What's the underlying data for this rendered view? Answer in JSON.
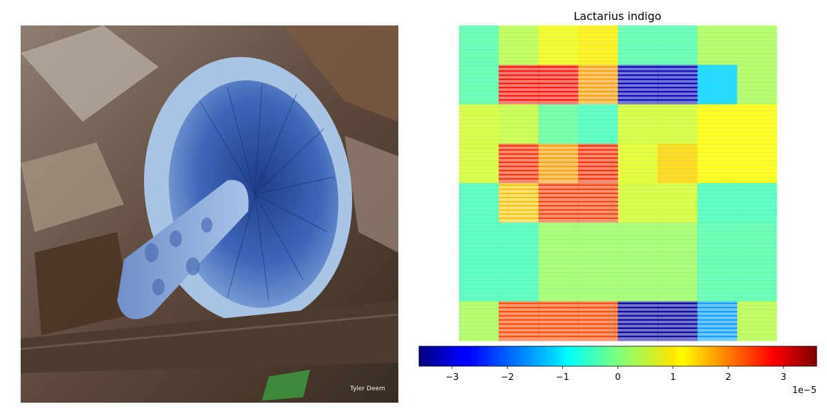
{
  "left_image": {
    "description_icon": "mushroom-photo",
    "watermark_text": "Tyler Deem"
  },
  "chart_data": {
    "type": "heatmap",
    "title": "Lactarius indigo",
    "grid": false,
    "rows": 8,
    "cols": 8,
    "values": [
      [
        -0.3,
        0.4,
        0.8,
        1.0,
        -0.3,
        -0.3,
        0.3,
        0.3
      ],
      [
        -0.3,
        2.6,
        2.6,
        1.6,
        -3.2,
        -3.2,
        -1.2,
        0.3
      ],
      [
        0.6,
        0.5,
        -0.2,
        -0.4,
        0.6,
        0.6,
        0.9,
        0.9
      ],
      [
        0.6,
        2.4,
        1.6,
        2.4,
        0.7,
        1.2,
        0.9,
        0.9
      ],
      [
        -0.4,
        1.3,
        2.3,
        2.3,
        0.6,
        0.6,
        -0.4,
        -0.4
      ],
      [
        -0.4,
        -0.4,
        0.2,
        0.2,
        0.2,
        0.2,
        -0.3,
        -0.3
      ],
      [
        -0.4,
        -0.4,
        0.2,
        0.2,
        0.2,
        0.2,
        -0.3,
        -0.3
      ],
      [
        0.3,
        2.2,
        2.2,
        2.2,
        -3.4,
        -3.4,
        -1.6,
        0.4
      ]
    ],
    "value_scale": 1e-05,
    "colorbar": {
      "range": [
        -3.6,
        3.6
      ],
      "ticks": [
        -3,
        -2,
        -1,
        0,
        1,
        2,
        3
      ],
      "tick_labels": [
        "−3",
        "−2",
        "−1",
        "0",
        "1",
        "2",
        "3"
      ],
      "offset_label": "1e−5",
      "colormap": "jet",
      "position": "bottom"
    }
  }
}
